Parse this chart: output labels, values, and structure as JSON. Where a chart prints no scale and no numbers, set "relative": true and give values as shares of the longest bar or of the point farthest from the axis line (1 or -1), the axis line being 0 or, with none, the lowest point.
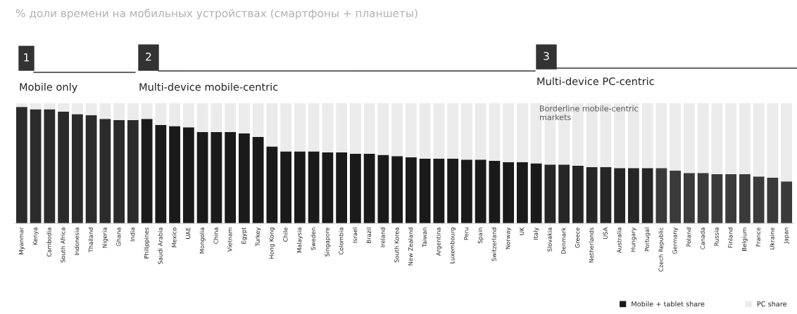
{
  "chart_data": {
    "type": "bar",
    "title": "% доли времени на мобильных устройствах (смартфоны + планшеты)",
    "categories": [
      "Myanmar",
      "Kenya",
      "Cambodia",
      "South Africa",
      "Indonesia",
      "Thailand",
      "Nigeria",
      "Ghana",
      "India",
      "Philippines",
      "Saudi Arabia",
      "Mexico",
      "UAE",
      "Mongolia",
      "China",
      "Vietnam",
      "Egypt",
      "Turkey",
      "Hong Kong",
      "Chile",
      "Malaysia",
      "Sweden",
      "Singapore",
      "Colombia",
      "Israel",
      "Brazil",
      "Ireland",
      "South Korea",
      "New Zealand",
      "Taiwan",
      "Argentina",
      "Luxembourg",
      "Peru",
      "Spain",
      "Switzerland",
      "Norway",
      "UK",
      "Italy",
      "Slovakia",
      "Denmark",
      "Greece",
      "Netherlands",
      "USA",
      "Australia",
      "Hungary",
      "Portugal",
      "Czech Republic",
      "Germany",
      "Poland",
      "Canada",
      "Russia",
      "Finland",
      "Belgium",
      "France",
      "Ukraine",
      "Japan"
    ],
    "relative": true,
    "stacked": true,
    "series": [
      {
        "name": "Mobile + tablet share",
        "color": "#1a1a1a",
        "colors": [
          "#2b2b2b",
          "#2b2b2b",
          "#2b2b2b",
          "#2b2b2b",
          "#2b2b2b",
          "#2b2b2b",
          "#2b2b2b",
          "#2b2b2b",
          "#2b2b2b",
          "#1a1a1a",
          "#1a1a1a",
          "#1a1a1a",
          "#1a1a1a",
          "#1a1a1a",
          "#1a1a1a",
          "#1a1a1a",
          "#1a1a1a",
          "#1a1a1a",
          "#1a1a1a",
          "#1a1a1a",
          "#1a1a1a",
          "#1a1a1a",
          "#1a1a1a",
          "#1a1a1a",
          "#1a1a1a",
          "#1a1a1a",
          "#1a1a1a",
          "#1a1a1a",
          "#1a1a1a",
          "#1a1a1a",
          "#1a1a1a",
          "#1a1a1a",
          "#1a1a1a",
          "#1a1a1a",
          "#1a1a1a",
          "#1a1a1a",
          "#1a1a1a",
          "#1a1a1a",
          "#262626",
          "#262626",
          "#262626",
          "#262626",
          "#262626",
          "#262626",
          "#262626",
          "#262626",
          "#3a3a3a",
          "#3a3a3a",
          "#3a3a3a",
          "#3a3a3a",
          "#3a3a3a",
          "#3a3a3a",
          "#3a3a3a",
          "#3a3a3a",
          "#3a3a3a",
          "#3a3a3a"
        ],
        "values": [
          0.97,
          0.95,
          0.95,
          0.93,
          0.91,
          0.9,
          0.87,
          0.86,
          0.86,
          0.87,
          0.82,
          0.81,
          0.8,
          0.76,
          0.76,
          0.76,
          0.75,
          0.72,
          0.64,
          0.6,
          0.6,
          0.6,
          0.59,
          0.59,
          0.58,
          0.58,
          0.57,
          0.56,
          0.55,
          0.54,
          0.54,
          0.54,
          0.53,
          0.53,
          0.52,
          0.51,
          0.51,
          0.5,
          0.49,
          0.49,
          0.48,
          0.47,
          0.47,
          0.46,
          0.46,
          0.46,
          0.46,
          0.44,
          0.42,
          0.42,
          0.41,
          0.41,
          0.41,
          0.39,
          0.38,
          0.35
        ]
      },
      {
        "name": "PC share",
        "color": "#ebebeb",
        "values": [
          0.03,
          0.05,
          0.05,
          0.07,
          0.09,
          0.1,
          0.13,
          0.14,
          0.14,
          0.13,
          0.18,
          0.19,
          0.2,
          0.24,
          0.24,
          0.24,
          0.25,
          0.28,
          0.36,
          0.4,
          0.4,
          0.4,
          0.41,
          0.41,
          0.42,
          0.42,
          0.43,
          0.44,
          0.45,
          0.46,
          0.46,
          0.46,
          0.47,
          0.47,
          0.48,
          0.49,
          0.49,
          0.5,
          0.51,
          0.51,
          0.52,
          0.53,
          0.53,
          0.54,
          0.54,
          0.54,
          0.54,
          0.56,
          0.58,
          0.58,
          0.59,
          0.59,
          0.59,
          0.61,
          0.62,
          0.65
        ]
      }
    ],
    "annotations": [
      "1",
      "Mobile only",
      "2",
      "Multi-device mobile-centric",
      "3",
      "Multi-device PC-centric",
      "Borderline mobile-centric\nmarkets"
    ],
    "legend": "bottom right",
    "grid": false
  }
}
